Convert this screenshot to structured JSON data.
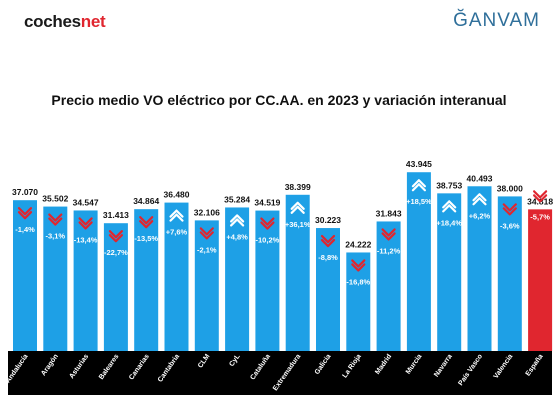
{
  "header": {
    "logo_left_main": "coches",
    "logo_left_accent": "net",
    "logo_right": "ĞANVAM"
  },
  "chart_data": {
    "type": "bar",
    "title": "Precio medio VO eléctrico por CC.AA. en 2023 y variación interanual",
    "categories": [
      "Andalucía",
      "Aragón",
      "Asturias",
      "Baleares",
      "Canarias",
      "Cantabria",
      "CLM",
      "CyL",
      "Cataluña",
      "Extremadura",
      "Galicia",
      "La Rioja",
      "Madrid",
      "Murcia",
      "Navarra",
      "País Vasco",
      "Valencia",
      "España"
    ],
    "values": [
      37070,
      35502,
      34547,
      31413,
      34864,
      36480,
      32106,
      35284,
      34519,
      38399,
      30223,
      24222,
      31843,
      43945,
      38753,
      40493,
      38000,
      34818
    ],
    "value_labels": [
      "37.070",
      "35.502",
      "34.547",
      "31.413",
      "34.864",
      "36.480",
      "32.106",
      "35.284",
      "34.519",
      "38.399",
      "30.223",
      "24.222",
      "31.843",
      "43.945",
      "38.753",
      "40.493",
      "38.000",
      "34.818"
    ],
    "variation_labels": [
      "-1,4%",
      "-3,1%",
      "-13,4%",
      "-22,7%",
      "-13,5%",
      "+7,6%",
      "-2,1%",
      "+4,8%",
      "-10,2%",
      "+36,1%",
      "-8,8%",
      "-16,8%",
      "-11,2%",
      "+18,5%",
      "+18,4%",
      "+6,2%",
      "-3,6%",
      "-5,7%"
    ],
    "variation_values": [
      -1.4,
      -3.1,
      -13.4,
      -22.7,
      -13.5,
      7.6,
      -2.1,
      4.8,
      -10.2,
      36.1,
      -8.8,
      -16.8,
      -11.2,
      18.5,
      18.4,
      6.2,
      -3.6,
      -5.7
    ],
    "highlight_category": "España",
    "colors": {
      "bar": "#1ea0e6",
      "bar_highlight": "#e0262f",
      "arrow_down": "#e0262f",
      "arrow_up": "#ffffff",
      "label_band": "#000000"
    }
  }
}
